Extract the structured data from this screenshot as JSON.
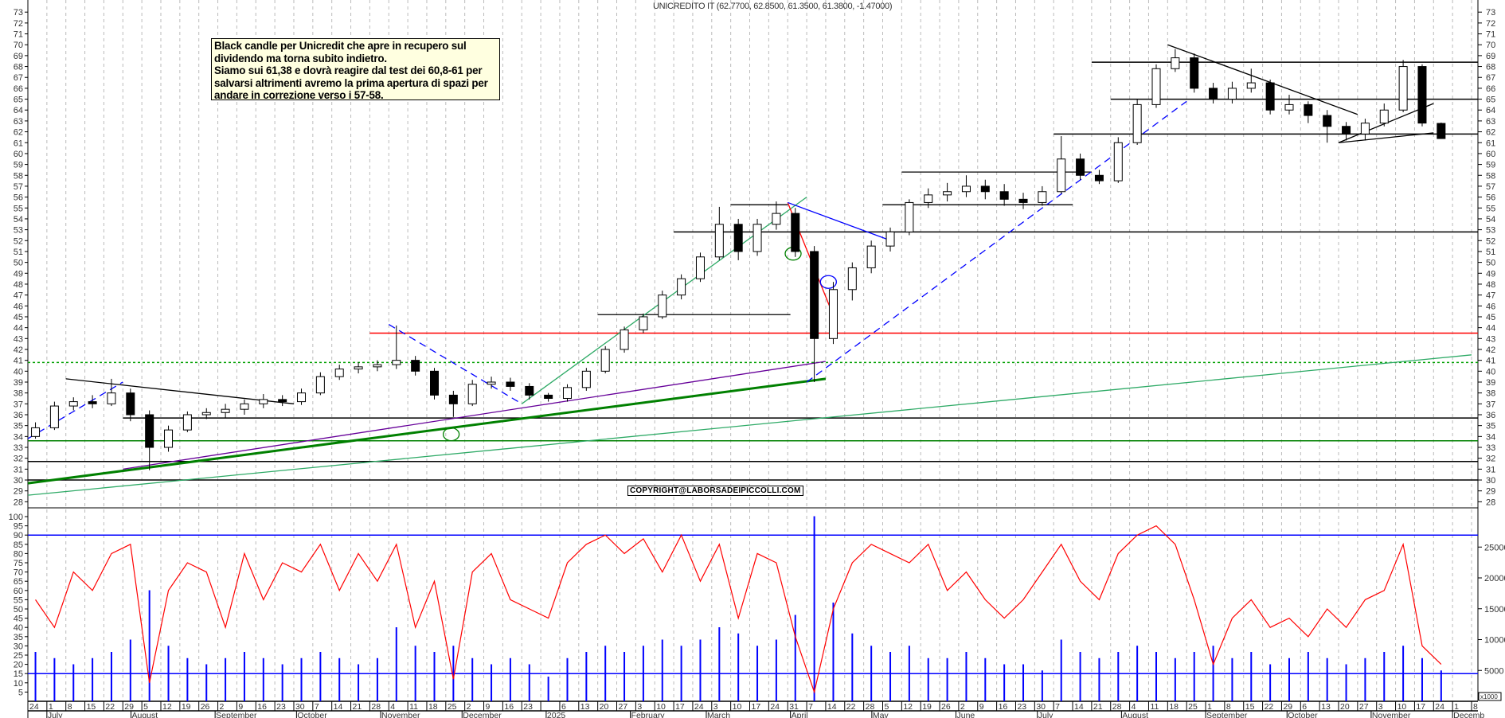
{
  "header": {
    "title": "UNICREDITO IT (62.7700, 62.8500, 61.3500, 61.3800, -1.47000)"
  },
  "note": {
    "lines": [
      "Black candle per Unicredit che apre in recupero sul",
      "dividendo ma torna subito indietro.",
      "Siamo sui 61,38 e dovrà reagire dal test dei 60,8-61 per",
      "salvarsi altrimenti avremo la prima apertura di spazi per",
      "andare in correzione verso i 57-58."
    ]
  },
  "copyright": "COPYRIGHT@LABORSADEIPICCOLLI.COM",
  "volume_unit_label": "x1000",
  "colors": {
    "up": "#ffffff",
    "down": "#000000",
    "volume": "#0000ff",
    "oscillator": "#ff0000",
    "grid": "#bbbbbb"
  },
  "chart_data": [
    {
      "type": "candlestick",
      "title": "UNICREDITO IT (62.7700, 62.8500, 61.3500, 61.3800, -1.47000)",
      "start_week": "2024-06-24",
      "ylim": [
        28,
        73
      ],
      "yticks": [
        28,
        29,
        30,
        31,
        32,
        33,
        34,
        35,
        36,
        37,
        38,
        39,
        40,
        41,
        42,
        43,
        44,
        45,
        46,
        47,
        48,
        49,
        50,
        51,
        52,
        53,
        54,
        55,
        56,
        57,
        58,
        59,
        60,
        61,
        62,
        63,
        64,
        65,
        66,
        67,
        68,
        69,
        70,
        71,
        72,
        73
      ],
      "ohlc": [
        [
          34.0,
          35.3,
          33.8,
          34.8
        ],
        [
          34.8,
          37.2,
          34.6,
          36.8
        ],
        [
          36.8,
          37.6,
          36.4,
          37.2
        ],
        [
          37.2,
          37.8,
          36.6,
          37.0
        ],
        [
          37.0,
          39.3,
          36.8,
          38.0
        ],
        [
          38.0,
          38.4,
          35.4,
          36.0
        ],
        [
          36.0,
          36.4,
          30.9,
          33.0
        ],
        [
          33.0,
          35.0,
          32.6,
          34.6
        ],
        [
          34.6,
          36.3,
          34.4,
          36.0
        ],
        [
          36.0,
          36.6,
          35.6,
          36.2
        ],
        [
          36.2,
          37.0,
          35.7,
          36.5
        ],
        [
          36.5,
          37.4,
          36.0,
          37.0
        ],
        [
          37.0,
          37.9,
          36.6,
          37.4
        ],
        [
          37.4,
          37.8,
          36.8,
          37.2
        ],
        [
          37.2,
          38.4,
          36.9,
          38.0
        ],
        [
          38.0,
          39.9,
          37.8,
          39.5
        ],
        [
          39.5,
          40.6,
          39.2,
          40.2
        ],
        [
          40.2,
          40.8,
          39.8,
          40.4
        ],
        [
          40.4,
          41.0,
          40.0,
          40.6
        ],
        [
          40.6,
          44.2,
          40.2,
          41.0
        ],
        [
          41.0,
          41.4,
          39.6,
          40.0
        ],
        [
          40.0,
          40.3,
          37.4,
          37.8
        ],
        [
          37.8,
          38.2,
          35.8,
          37.0
        ],
        [
          37.0,
          39.2,
          36.8,
          38.8
        ],
        [
          38.8,
          39.5,
          38.4,
          39.0
        ],
        [
          39.0,
          39.4,
          38.2,
          38.6
        ],
        [
          38.6,
          38.9,
          37.4,
          37.8
        ],
        [
          37.8,
          38.0,
          37.2,
          37.5
        ],
        [
          37.5,
          38.8,
          37.2,
          38.5
        ],
        [
          38.5,
          40.3,
          38.2,
          40.0
        ],
        [
          40.0,
          42.3,
          39.8,
          42.0
        ],
        [
          42.0,
          44.1,
          41.7,
          43.8
        ],
        [
          43.8,
          45.3,
          43.5,
          45.0
        ],
        [
          45.0,
          47.4,
          44.8,
          47.0
        ],
        [
          47.0,
          48.9,
          46.6,
          48.5
        ],
        [
          48.5,
          50.9,
          48.2,
          50.5
        ],
        [
          50.5,
          55.1,
          50.2,
          53.5
        ],
        [
          53.5,
          54.0,
          50.2,
          51.0
        ],
        [
          51.0,
          54.0,
          50.6,
          53.5
        ],
        [
          53.5,
          55.6,
          53.0,
          54.5
        ],
        [
          54.5,
          55.0,
          50.5,
          51.0
        ],
        [
          51.0,
          51.5,
          39.0,
          43.0
        ],
        [
          43.0,
          48.2,
          42.5,
          47.5
        ],
        [
          47.5,
          50.0,
          46.5,
          49.5
        ],
        [
          49.5,
          52.0,
          49.0,
          51.5
        ],
        [
          51.5,
          53.2,
          51.0,
          52.8
        ],
        [
          52.8,
          55.8,
          52.5,
          55.5
        ],
        [
          55.5,
          56.8,
          55.0,
          56.2
        ],
        [
          56.2,
          57.3,
          55.6,
          56.5
        ],
        [
          56.5,
          58.0,
          56.0,
          57.0
        ],
        [
          57.0,
          57.6,
          55.8,
          56.5
        ],
        [
          56.5,
          57.2,
          55.2,
          55.8
        ],
        [
          55.8,
          56.4,
          54.9,
          55.5
        ],
        [
          55.5,
          57.0,
          55.2,
          56.5
        ],
        [
          56.5,
          61.6,
          56.3,
          59.5
        ],
        [
          59.5,
          60.0,
          57.6,
          58.0
        ],
        [
          58.0,
          58.5,
          57.2,
          57.5
        ],
        [
          57.5,
          61.5,
          57.3,
          61.0
        ],
        [
          61.0,
          65.0,
          60.8,
          64.5
        ],
        [
          64.5,
          68.2,
          64.2,
          67.8
        ],
        [
          67.8,
          69.6,
          67.5,
          68.8
        ],
        [
          68.8,
          69.2,
          65.6,
          66.0
        ],
        [
          66.0,
          66.5,
          64.6,
          65.0
        ],
        [
          65.0,
          66.6,
          64.6,
          66.0
        ],
        [
          66.0,
          67.8,
          65.6,
          66.5
        ],
        [
          66.5,
          66.8,
          63.6,
          64.0
        ],
        [
          64.0,
          65.4,
          63.6,
          64.5
        ],
        [
          64.5,
          64.8,
          62.8,
          63.5
        ],
        [
          63.5,
          64.0,
          61.0,
          62.5
        ],
        [
          62.5,
          62.9,
          61.2,
          61.8
        ],
        [
          61.8,
          63.2,
          61.2,
          62.8
        ],
        [
          62.8,
          64.6,
          62.5,
          64.0
        ],
        [
          64.0,
          68.6,
          63.8,
          68.0
        ],
        [
          68.0,
          68.2,
          62.5,
          62.8
        ],
        [
          62.77,
          62.85,
          61.35,
          61.38
        ]
      ],
      "levels": [
        {
          "price": 68.4,
          "from": "2025-07-21",
          "color": "#000000"
        },
        {
          "price": 65.0,
          "from": "2025-07-28",
          "color": "#000000"
        },
        {
          "price": 61.8,
          "from": "2025-07-07",
          "color": "#000000"
        },
        {
          "price": 52.8,
          "from": "2025-02-17",
          "color": "#000000"
        },
        {
          "price": 43.5,
          "from": "2024-10-28",
          "color": "#ff0000"
        },
        {
          "price": 40.8,
          "from": "2024-06-24",
          "color": "#00a000",
          "dashed": true
        },
        {
          "price": 35.7,
          "from": "2024-07-29",
          "color": "#000000"
        },
        {
          "price": 33.6,
          "from": "2024-06-24",
          "color": "#008000"
        },
        {
          "price": 31.7,
          "from": "2024-06-24",
          "color": "#000000"
        },
        {
          "price": 30.0,
          "from": "2024-06-24",
          "color": "#000000"
        }
      ],
      "trendlines": [
        {
          "from": [
            "2025-05-12",
            58.3
          ],
          "to": [
            "2025-07-21",
            58.3
          ],
          "color": "#000000"
        },
        {
          "from": [
            "2025-05-05",
            55.3
          ],
          "to": [
            "2025-07-14",
            55.3
          ],
          "color": "#000000"
        },
        {
          "from": [
            "2025-01-20",
            45.2
          ],
          "to": [
            "2025-04-01",
            45.2
          ],
          "color": "#000000"
        },
        {
          "from": [
            "2025-03-10",
            55.3
          ],
          "to": [
            "2025-03-31",
            55.3
          ],
          "color": "#000000"
        },
        {
          "from": [
            "2024-06-24",
            28.6
          ],
          "to": [
            "2025-12-08",
            41.5
          ],
          "color": "#2eaa66"
        },
        {
          "from": [
            "2024-06-24",
            29.7
          ],
          "to": [
            "2025-04-14",
            39.3
          ],
          "color": "#008000",
          "width": 3
        },
        {
          "from": [
            "2024-07-29",
            31.0
          ],
          "to": [
            "2025-04-14",
            40.9
          ],
          "color": "#660099"
        },
        {
          "from": [
            "2024-07-08",
            39.3
          ],
          "to": [
            "2024-09-30",
            37.0
          ],
          "color": "#000000"
        },
        {
          "from": [
            "2024-06-24",
            33.8
          ],
          "to": [
            "2024-07-29",
            39.0
          ],
          "color": "#0000ff",
          "dashed": true
        },
        {
          "from": [
            "2024-11-04",
            44.3
          ],
          "to": [
            "2024-12-23",
            37.0
          ],
          "color": "#0000ff",
          "dashed": true
        },
        {
          "from": [
            "2025-04-07",
            39.0
          ],
          "to": [
            "2025-08-25",
            64.8
          ],
          "color": "#0000ff",
          "dashed": true
        },
        {
          "from": [
            "2024-12-23",
            37.0
          ],
          "to": [
            "2025-04-07",
            56.0
          ],
          "color": "#2eaa66"
        },
        {
          "from": [
            "2025-08-18",
            70.0
          ],
          "to": [
            "2025-10-27",
            63.6
          ],
          "color": "#000000"
        },
        {
          "from": [
            "2025-10-20",
            61.0
          ],
          "to": [
            "2025-11-24",
            64.6
          ],
          "color": "#000000"
        },
        {
          "from": [
            "2025-10-20",
            61.0
          ],
          "to": [
            "2025-11-24",
            61.9
          ],
          "color": "#000000"
        },
        {
          "from": [
            "2025-03-31",
            55.5
          ],
          "to": [
            "2025-04-17",
            45.0
          ],
          "color": "#ff0000"
        },
        {
          "from": [
            "2025-03-31",
            55.5
          ],
          "to": [
            "2025-05-08",
            52.0
          ],
          "color": "#0000ff"
        }
      ],
      "ellipses": [
        {
          "at": [
            "2024-11-27",
            34.2
          ],
          "color": "#008000"
        },
        {
          "at": [
            "2025-04-02",
            50.8
          ],
          "color": "#008000"
        },
        {
          "at": [
            "2025-04-15",
            48.2
          ],
          "color": "#0000ff"
        }
      ]
    },
    {
      "type": "line+bar",
      "left_axis": {
        "ylim": [
          0,
          103
        ],
        "ticks": [
          5,
          10,
          15,
          20,
          25,
          30,
          35,
          40,
          45,
          50,
          55,
          60,
          65,
          70,
          75,
          80,
          85,
          90,
          95,
          100
        ]
      },
      "right_axis": {
        "unit": "x1000",
        "ticks": [
          5000,
          10000,
          15000,
          20000,
          25000
        ]
      },
      "oscillator_levels": [
        90,
        15
      ],
      "oscillator": [
        55,
        40,
        70,
        60,
        80,
        85,
        10,
        60,
        75,
        70,
        40,
        80,
        55,
        75,
        70,
        85,
        60,
        80,
        65,
        85,
        40,
        65,
        12,
        70,
        80,
        55,
        50,
        45,
        75,
        85,
        90,
        80,
        88,
        70,
        90,
        65,
        85,
        45,
        80,
        75,
        35,
        5,
        50,
        75,
        85,
        80,
        75,
        85,
        60,
        70,
        55,
        45,
        55,
        70,
        85,
        65,
        55,
        80,
        90,
        95,
        85,
        55,
        20,
        45,
        55,
        40,
        45,
        35,
        50,
        40,
        55,
        60,
        85,
        30,
        20
      ],
      "volume_thousands": [
        8,
        7,
        6,
        7,
        8,
        10,
        18,
        9,
        7,
        6,
        7,
        8,
        7,
        6,
        7,
        8,
        7,
        6,
        7,
        12,
        9,
        8,
        9,
        7,
        6,
        7,
        6,
        4,
        7,
        8,
        9,
        8,
        9,
        10,
        9,
        10,
        12,
        11,
        9,
        10,
        14,
        30,
        16,
        11,
        9,
        8,
        9,
        7,
        7,
        8,
        7,
        6,
        6,
        5,
        10,
        8,
        7,
        8,
        9,
        8,
        7,
        8,
        9,
        7,
        8,
        6,
        7,
        8,
        7,
        6,
        7,
        8,
        9,
        7,
        5
      ]
    }
  ],
  "x_axis": {
    "week_labels": [
      "24",
      "1",
      "8",
      "15",
      "22",
      "29",
      "5",
      "12",
      "19",
      "26",
      "2",
      "9",
      "16",
      "23",
      "30",
      "7",
      "14",
      "21",
      "28",
      "4",
      "11",
      "18",
      "25",
      "2",
      "9",
      "16",
      "23",
      "",
      "6",
      "13",
      "20",
      "27",
      "3",
      "10",
      "17",
      "24",
      "3",
      "10",
      "17",
      "24",
      "31",
      "7",
      "14",
      "22",
      "28",
      "5",
      "12",
      "19",
      "26",
      "2",
      "9",
      "16",
      "23",
      "30",
      "7",
      "14",
      "21",
      "28",
      "4",
      "11",
      "18",
      "25",
      "1",
      "8",
      "15",
      "22",
      "29",
      "6",
      "13",
      "20",
      "27",
      "3",
      "10",
      "17",
      "24",
      "1",
      "8"
    ],
    "months": [
      {
        "label": "July",
        "date": "2024-07-01"
      },
      {
        "label": "August",
        "date": "2024-08-01"
      },
      {
        "label": "September",
        "date": "2024-09-01"
      },
      {
        "label": "October",
        "date": "2024-10-01"
      },
      {
        "label": "November",
        "date": "2024-11-01"
      },
      {
        "label": "December",
        "date": "2024-12-01"
      },
      {
        "label": "2025",
        "date": "2025-01-01"
      },
      {
        "label": "February",
        "date": "2025-02-01"
      },
      {
        "label": "March",
        "date": "2025-03-01"
      },
      {
        "label": "April",
        "date": "2025-04-01"
      },
      {
        "label": "May",
        "date": "2025-05-01"
      },
      {
        "label": "June",
        "date": "2025-06-01"
      },
      {
        "label": "July",
        "date": "2025-07-01"
      },
      {
        "label": "August",
        "date": "2025-08-01"
      },
      {
        "label": "September",
        "date": "2025-09-01"
      },
      {
        "label": "October",
        "date": "2025-10-01"
      },
      {
        "label": "November",
        "date": "2025-11-01"
      },
      {
        "label": "Decemb",
        "date": "2025-12-01"
      }
    ]
  }
}
